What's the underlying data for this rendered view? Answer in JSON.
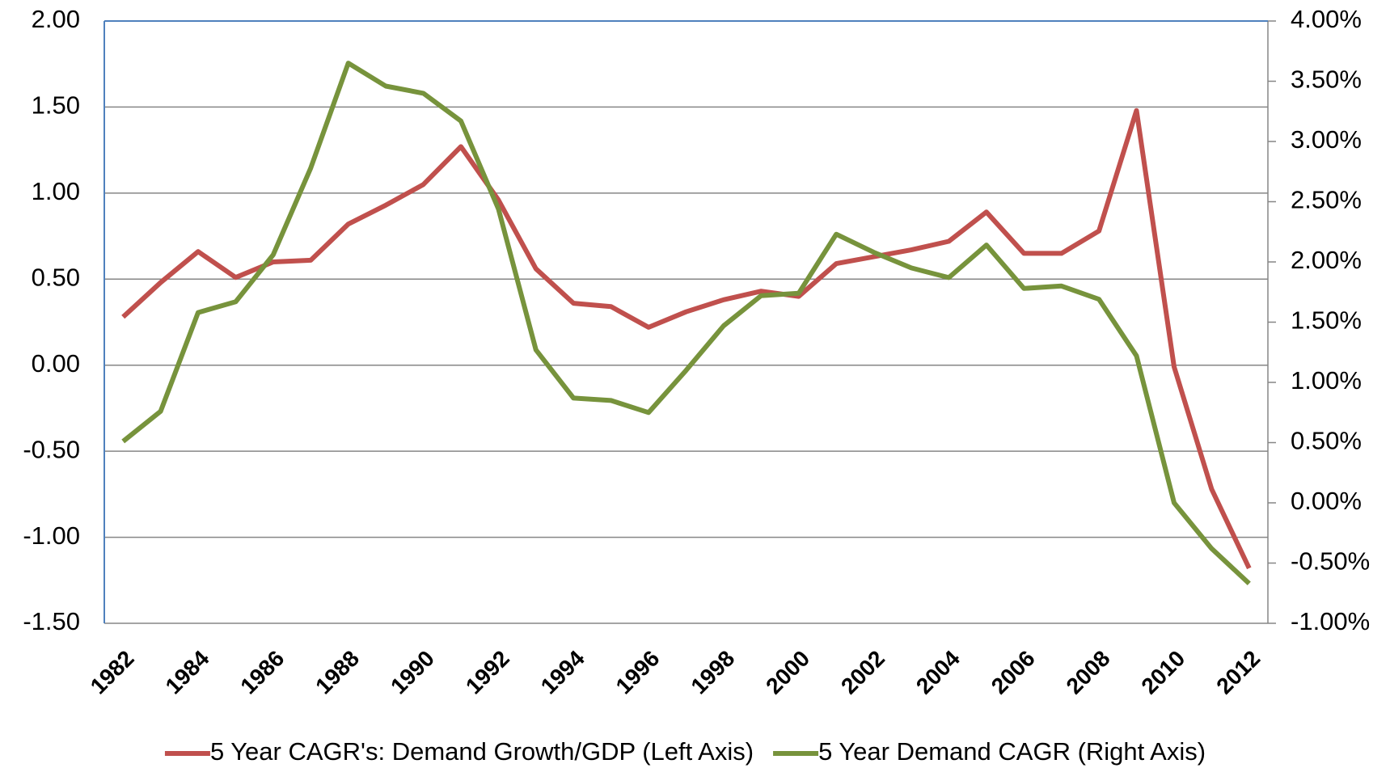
{
  "chart_data": {
    "type": "line",
    "categories": [
      "1982",
      null,
      "1984",
      null,
      "1986",
      null,
      "1988",
      null,
      "1990",
      null,
      "1992",
      null,
      "1994",
      null,
      "1996",
      null,
      "1998",
      null,
      "2000",
      null,
      "2002",
      null,
      "2004",
      null,
      "2006",
      null,
      "2008",
      null,
      "2010",
      null,
      "2012"
    ],
    "series": [
      {
        "name": "5 Year CAGR's: Demand Growth/GDP (Left Axis)",
        "color": "#c0504d",
        "values": [
          0.28,
          0.48,
          0.66,
          0.51,
          0.6,
          0.61,
          0.82,
          0.93,
          1.05,
          1.27,
          0.96,
          0.56,
          0.36,
          0.34,
          0.22,
          0.31,
          0.38,
          0.43,
          0.4,
          0.59,
          0.63,
          0.67,
          0.72,
          0.89,
          0.65,
          0.65,
          0.78,
          1.48,
          -0.01,
          -0.72,
          -1.18
        ]
      },
      {
        "name": "5 Year Demand CAGR (Right Axis)",
        "color": "#77933c",
        "axis": "y2",
        "values": [
          0.51,
          0.76,
          1.58,
          1.67,
          2.06,
          2.78,
          3.65,
          3.46,
          3.4,
          3.17,
          2.44,
          1.27,
          0.87,
          0.85,
          0.75,
          1.1,
          1.47,
          1.72,
          1.74,
          2.23,
          2.08,
          1.95,
          1.87,
          2.14,
          1.78,
          1.8,
          1.69,
          1.22,
          0.0,
          -0.38,
          -0.67
        ]
      }
    ],
    "ylim": [
      -1.5,
      2
    ],
    "yticks": [
      {
        "value": -1.5,
        "label": "-1.50"
      },
      {
        "value": -1,
        "label": "-1.00"
      },
      {
        "value": -0.5,
        "label": "-0.50"
      },
      {
        "value": 0,
        "label": "0.00"
      },
      {
        "value": 0.5,
        "label": "0.50"
      },
      {
        "value": 1,
        "label": "1.00"
      },
      {
        "value": 1.5,
        "label": "1.50"
      },
      {
        "value": 2,
        "label": "2.00"
      }
    ],
    "y2lim": [
      -1,
      4
    ],
    "y2ticks": [
      {
        "value": -1,
        "label": "-1.00%"
      },
      {
        "value": -0.5,
        "label": "-0.50%"
      },
      {
        "value": 0,
        "label": "0.00%"
      },
      {
        "value": 0.5,
        "label": "0.50%"
      },
      {
        "value": 1,
        "label": "1.00%"
      },
      {
        "value": 1.5,
        "label": "1.50%"
      },
      {
        "value": 2,
        "label": "2.00%"
      },
      {
        "value": 2.5,
        "label": "2.50%"
      },
      {
        "value": 3,
        "label": "3.00%"
      },
      {
        "value": 3.5,
        "label": "3.50%"
      },
      {
        "value": 4,
        "label": "4.00%"
      }
    ],
    "grid": true,
    "legend": "bottom"
  }
}
